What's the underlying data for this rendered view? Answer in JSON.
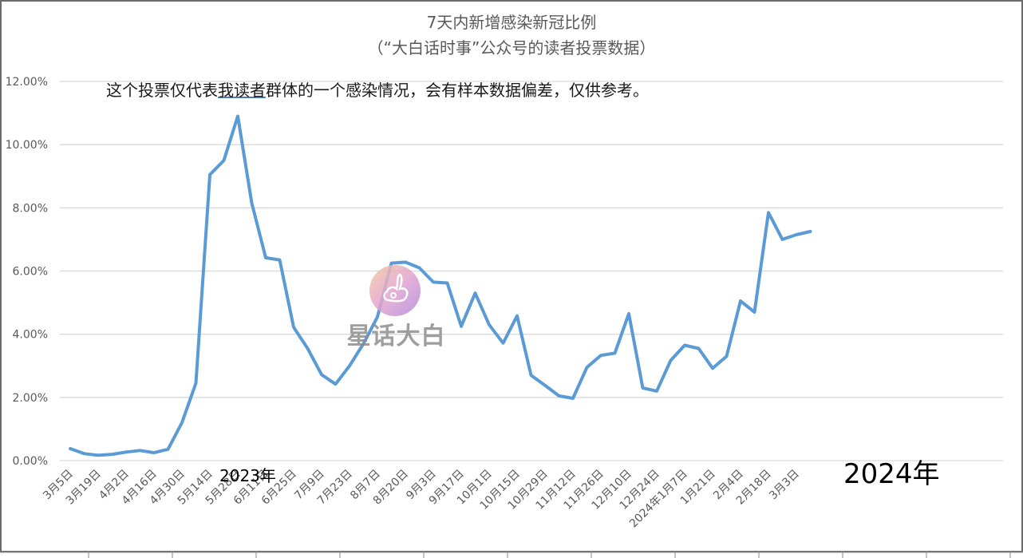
{
  "chart_data": {
    "type": "line",
    "title": "7天内新增感染新冠比例",
    "subtitle": "（“大白话时事”公众号的读者投票数据）",
    "annotation": "这个投票仅代表我读者群体的一个感染情况，会有样本数据偏差，仅供参考。",
    "annotation_underlined": "我读者",
    "year_labels": [
      "2023年",
      "2024年"
    ],
    "watermark_text": "星话大白",
    "xlabel": "",
    "ylabel": "",
    "ylim": [
      0,
      12
    ],
    "yticks": [
      "0.00%",
      "2.00%",
      "4.00%",
      "6.00%",
      "8.00%",
      "10.00%",
      "12.00%"
    ],
    "grid": true,
    "legend": "none",
    "line_color": "#5b9bd5",
    "x": [
      "3月5日",
      "3月12日",
      "3月19日",
      "3月26日",
      "4月2日",
      "4月9日",
      "4月16日",
      "4月23日",
      "4月30日",
      "5月7日",
      "5月14日",
      "5月21日",
      "5月28日",
      "6月4日",
      "6月11日",
      "6月18日",
      "6月25日",
      "7月2日",
      "7月9日",
      "7月16日",
      "7月23日",
      "7月30日",
      "8月7日",
      "8月13日",
      "8月20日",
      "8月27日",
      "9月3日",
      "9月10日",
      "9月17日",
      "9月24日",
      "10月1日",
      "10月8日",
      "10月15日",
      "10月22日",
      "10月29日",
      "11月5日",
      "11月12日",
      "11月19日",
      "11月26日",
      "12月3日",
      "12月10日",
      "12月17日",
      "12月24日",
      "12月31日",
      "2024年1月7日",
      "1月14日",
      "1月21日",
      "1月28日",
      "2月4日",
      "2月11日",
      "2月18日",
      "2月25日",
      "3月3日",
      "3月10日"
    ],
    "xtick_labels": [
      "3月5日",
      "3月19日",
      "4月2日",
      "4月16日",
      "4月30日",
      "5月14日",
      "5月28日",
      "6月11日",
      "6月25日",
      "7月9日",
      "7月23日",
      "8月7日",
      "8月20日",
      "9月3日",
      "9月17日",
      "10月1日",
      "10月15日",
      "10月29日",
      "11月12日",
      "11月26日",
      "12月10日",
      "12月24日",
      "2024年1月7日",
      "1月21日",
      "2月4日",
      "2月18日",
      "3月3日"
    ],
    "values": [
      0.38,
      0.22,
      0.17,
      0.2,
      0.27,
      0.32,
      0.25,
      0.36,
      1.2,
      2.45,
      9.05,
      9.5,
      10.9,
      8.15,
      6.42,
      6.35,
      4.22,
      3.55,
      2.72,
      2.42,
      3.0,
      3.7,
      4.55,
      6.25,
      6.28,
      6.1,
      5.65,
      5.62,
      4.25,
      5.3,
      4.3,
      3.72,
      4.58,
      2.7,
      2.38,
      2.05,
      1.97,
      2.95,
      3.33,
      3.4,
      4.65,
      2.3,
      2.2,
      3.17,
      3.65,
      3.55,
      2.92,
      3.3,
      5.05,
      4.7,
      7.85,
      7.0,
      7.15,
      7.25
    ]
  }
}
